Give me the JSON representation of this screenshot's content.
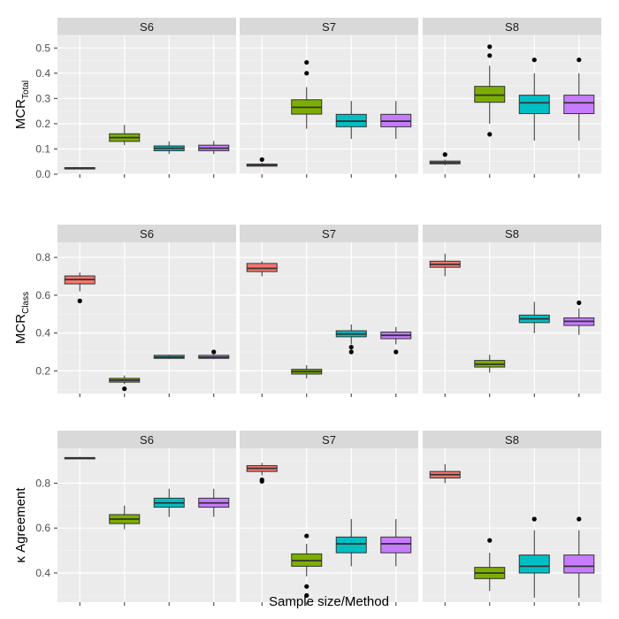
{
  "figure": {
    "xlabel": "Sample size/Method"
  },
  "chart_data": [
    {
      "type": "boxplot",
      "row": "total",
      "ylabel": {
        "main": "MCR",
        "sub": "Total"
      },
      "ylim": [
        0,
        0.55
      ],
      "yticks": [
        "0.0",
        "0.1",
        "0.2",
        "0.3",
        "0.4",
        "0.5"
      ],
      "colors": [
        "#F8766D",
        "#7CAE00",
        "#00BFC4",
        "#C77CFF"
      ],
      "panels": [
        {
          "label": "S6",
          "boxes": [
            {
              "min": 0.022,
              "q1": 0.023,
              "median": 0.024,
              "q3": 0.026,
              "max": 0.028,
              "outliers": []
            },
            {
              "min": 0.115,
              "q1": 0.13,
              "median": 0.145,
              "q3": 0.16,
              "max": 0.195,
              "outliers": []
            },
            {
              "min": 0.08,
              "q1": 0.093,
              "median": 0.103,
              "q3": 0.112,
              "max": 0.13,
              "outliers": []
            },
            {
              "min": 0.08,
              "q1": 0.093,
              "median": 0.103,
              "q3": 0.115,
              "max": 0.132,
              "outliers": []
            }
          ]
        },
        {
          "label": "S7",
          "boxes": [
            {
              "min": 0.03,
              "q1": 0.032,
              "median": 0.035,
              "q3": 0.04,
              "max": 0.045,
              "outliers": [
                0.058
              ]
            },
            {
              "min": 0.18,
              "q1": 0.238,
              "median": 0.265,
              "q3": 0.295,
              "max": 0.345,
              "outliers": [
                0.4,
                0.443
              ]
            },
            {
              "min": 0.14,
              "q1": 0.188,
              "median": 0.21,
              "q3": 0.237,
              "max": 0.29,
              "outliers": []
            },
            {
              "min": 0.14,
              "q1": 0.188,
              "median": 0.21,
              "q3": 0.237,
              "max": 0.29,
              "outliers": []
            }
          ]
        },
        {
          "label": "S8",
          "boxes": [
            {
              "min": 0.036,
              "q1": 0.041,
              "median": 0.046,
              "q3": 0.052,
              "max": 0.058,
              "outliers": [
                0.078
              ]
            },
            {
              "min": 0.2,
              "q1": 0.285,
              "median": 0.313,
              "q3": 0.348,
              "max": 0.43,
              "outliers": [
                0.158,
                0.47,
                0.505
              ]
            },
            {
              "min": 0.133,
              "q1": 0.24,
              "median": 0.283,
              "q3": 0.313,
              "max": 0.4,
              "outliers": [
                0.453
              ]
            },
            {
              "min": 0.133,
              "q1": 0.24,
              "median": 0.283,
              "q3": 0.313,
              "max": 0.4,
              "outliers": [
                0.453
              ]
            }
          ]
        }
      ]
    },
    {
      "type": "boxplot",
      "row": "class",
      "ylabel": {
        "main": "MCR",
        "sub": "Class"
      },
      "ylim": [
        0.08,
        0.88
      ],
      "yticks": [
        "0.2",
        "0.4",
        "0.6",
        "0.8"
      ],
      "colors": [
        "#F8766D",
        "#7CAE00",
        "#00BFC4",
        "#C77CFF"
      ],
      "panels": [
        {
          "label": "S6",
          "boxes": [
            {
              "min": 0.62,
              "q1": 0.66,
              "median": 0.683,
              "q3": 0.702,
              "max": 0.72,
              "outliers": [
                0.57
              ]
            },
            {
              "min": 0.13,
              "q1": 0.14,
              "median": 0.15,
              "q3": 0.16,
              "max": 0.175,
              "outliers": [
                0.105
              ]
            },
            {
              "min": 0.262,
              "q1": 0.266,
              "median": 0.272,
              "q3": 0.282,
              "max": 0.286,
              "outliers": []
            },
            {
              "min": 0.262,
              "q1": 0.266,
              "median": 0.272,
              "q3": 0.282,
              "max": 0.286,
              "outliers": [
                0.3
              ]
            }
          ]
        },
        {
          "label": "S7",
          "boxes": [
            {
              "min": 0.7,
              "q1": 0.725,
              "median": 0.742,
              "q3": 0.768,
              "max": 0.78,
              "outliers": []
            },
            {
              "min": 0.16,
              "q1": 0.183,
              "median": 0.196,
              "q3": 0.208,
              "max": 0.23,
              "outliers": []
            },
            {
              "min": 0.34,
              "q1": 0.38,
              "median": 0.395,
              "q3": 0.412,
              "max": 0.445,
              "outliers": [
                0.3,
                0.325
              ]
            },
            {
              "min": 0.34,
              "q1": 0.37,
              "median": 0.388,
              "q3": 0.405,
              "max": 0.432,
              "outliers": [
                0.3
              ]
            }
          ]
        },
        {
          "label": "S8",
          "boxes": [
            {
              "min": 0.7,
              "q1": 0.748,
              "median": 0.763,
              "q3": 0.78,
              "max": 0.82,
              "outliers": []
            },
            {
              "min": 0.19,
              "q1": 0.22,
              "median": 0.235,
              "q3": 0.255,
              "max": 0.285,
              "outliers": []
            },
            {
              "min": 0.4,
              "q1": 0.455,
              "median": 0.475,
              "q3": 0.495,
              "max": 0.565,
              "outliers": []
            },
            {
              "min": 0.39,
              "q1": 0.44,
              "median": 0.462,
              "q3": 0.48,
              "max": 0.53,
              "outliers": [
                0.56
              ]
            }
          ]
        }
      ]
    },
    {
      "type": "boxplot",
      "row": "agreement",
      "ylabel": {
        "main": "κ Agreement",
        "sub": ""
      },
      "ylim": [
        0.27,
        0.955
      ],
      "yticks": [
        "0.4",
        "0.6",
        "0.8"
      ],
      "colors": [
        "#F8766D",
        "#7CAE00",
        "#00BFC4",
        "#C77CFF"
      ],
      "panels": [
        {
          "label": "S6",
          "boxes": [
            {
              "min": 0.908,
              "q1": 0.91,
              "median": 0.912,
              "q3": 0.914,
              "max": 0.917,
              "outliers": []
            },
            {
              "min": 0.595,
              "q1": 0.62,
              "median": 0.64,
              "q3": 0.66,
              "max": 0.7,
              "outliers": []
            },
            {
              "min": 0.65,
              "q1": 0.693,
              "median": 0.712,
              "q3": 0.733,
              "max": 0.775,
              "outliers": []
            },
            {
              "min": 0.65,
              "q1": 0.693,
              "median": 0.712,
              "q3": 0.733,
              "max": 0.775,
              "outliers": []
            }
          ]
        },
        {
          "label": "S7",
          "boxes": [
            {
              "min": 0.835,
              "q1": 0.852,
              "median": 0.866,
              "q3": 0.878,
              "max": 0.89,
              "outliers": [
                0.808,
                0.815
              ]
            },
            {
              "min": 0.385,
              "q1": 0.43,
              "median": 0.455,
              "q3": 0.485,
              "max": 0.53,
              "outliers": [
                0.3,
                0.34,
                0.565
              ]
            },
            {
              "min": 0.43,
              "q1": 0.49,
              "median": 0.53,
              "q3": 0.56,
              "max": 0.64,
              "outliers": []
            },
            {
              "min": 0.43,
              "q1": 0.49,
              "median": 0.53,
              "q3": 0.56,
              "max": 0.64,
              "outliers": []
            }
          ]
        },
        {
          "label": "S8",
          "boxes": [
            {
              "min": 0.8,
              "q1": 0.823,
              "median": 0.838,
              "q3": 0.852,
              "max": 0.885,
              "outliers": []
            },
            {
              "min": 0.32,
              "q1": 0.375,
              "median": 0.4,
              "q3": 0.425,
              "max": 0.49,
              "outliers": [
                0.545
              ]
            },
            {
              "min": 0.29,
              "q1": 0.4,
              "median": 0.43,
              "q3": 0.48,
              "max": 0.59,
              "outliers": [
                0.64
              ]
            },
            {
              "min": 0.29,
              "q1": 0.4,
              "median": 0.43,
              "q3": 0.48,
              "max": 0.59,
              "outliers": [
                0.64
              ]
            }
          ]
        }
      ]
    }
  ]
}
